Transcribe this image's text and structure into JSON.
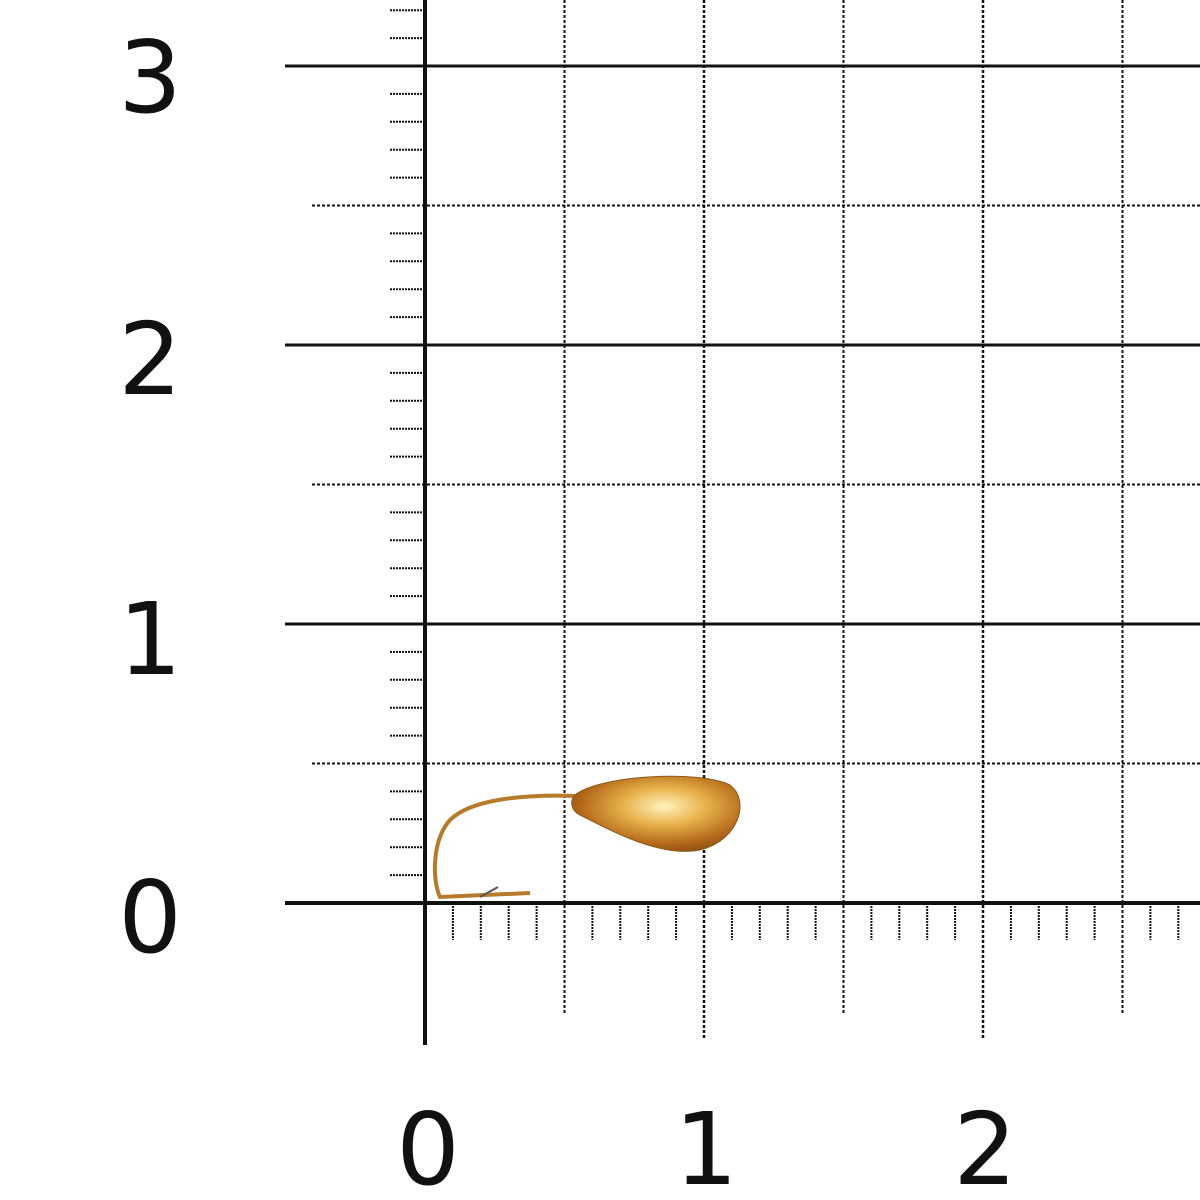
{
  "scale": {
    "y_labels": [
      "0",
      "1",
      "2",
      "3"
    ],
    "x_labels": [
      "0",
      "1",
      "2"
    ],
    "grid_color": "#111111",
    "background": "#ffffff"
  },
  "object": {
    "icon": "gold-teardrop-jig",
    "color": "#d4a040"
  }
}
